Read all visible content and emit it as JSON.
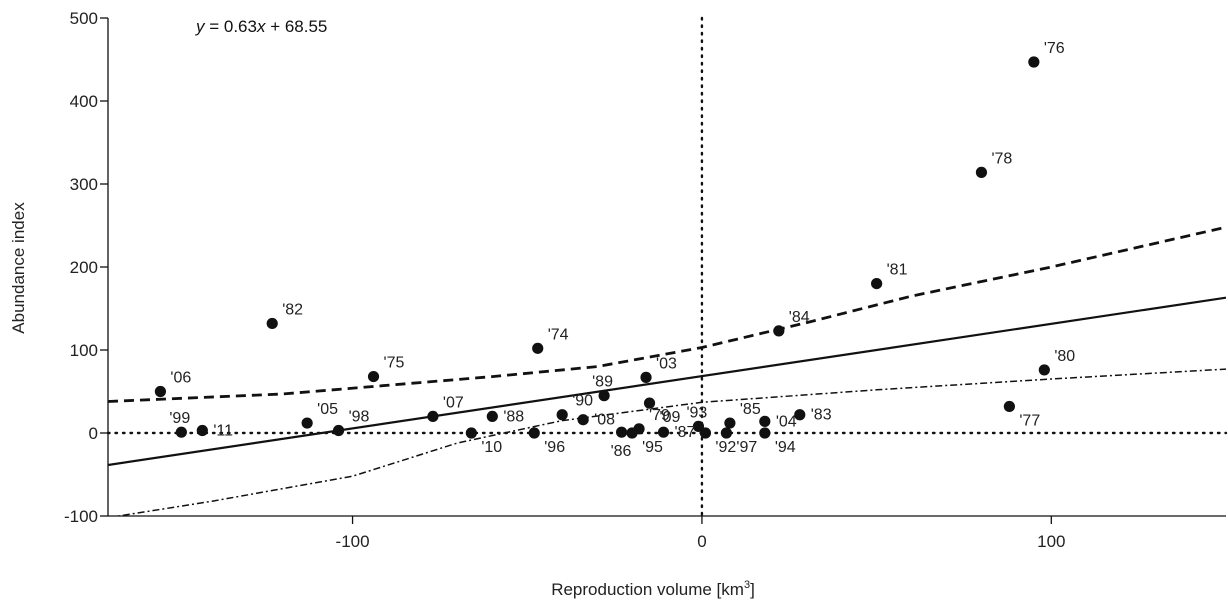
{
  "chart_data": {
    "type": "scatter",
    "title": "",
    "equation": {
      "y": "y",
      "mid": " = 0.63",
      "x": "x",
      "rest": " + 68.55"
    },
    "xlabel": {
      "main": "Reproduction volume [km",
      "sup": "3",
      "end": "]"
    },
    "ylabel": "Abundance index",
    "xlim": [
      -170,
      150
    ],
    "ylim": [
      -100,
      500
    ],
    "xticks": [
      {
        "value": -100,
        "label": "-100"
      },
      {
        "value": 0,
        "label": "0"
      },
      {
        "value": 100,
        "label": "100"
      }
    ],
    "yticks": [
      {
        "value": -100,
        "label": "-100"
      },
      {
        "value": 0,
        "label": "0"
      },
      {
        "value": 100,
        "label": "100"
      },
      {
        "value": 200,
        "label": "200"
      },
      {
        "value": 300,
        "label": "300"
      },
      {
        "value": 400,
        "label": "400"
      },
      {
        "value": 500,
        "label": "500"
      }
    ],
    "regression": {
      "slope": 0.63,
      "intercept": 68.55
    },
    "confidence_upper": [
      [
        -170,
        38
      ],
      [
        -120,
        47
      ],
      [
        -60,
        68
      ],
      [
        -30,
        80
      ],
      [
        0,
        103
      ],
      [
        30,
        133
      ],
      [
        60,
        165
      ],
      [
        100,
        200
      ],
      [
        150,
        248
      ]
    ],
    "confidence_lower": [
      [
        -170,
        -102
      ],
      [
        -140,
        -82
      ],
      [
        -100,
        -52
      ],
      [
        -70,
        -12
      ],
      [
        -40,
        15
      ],
      [
        0,
        37
      ],
      [
        50,
        52
      ],
      [
        100,
        65
      ],
      [
        150,
        77
      ]
    ],
    "reference_lines": {
      "x": 0,
      "y": 0
    },
    "points": [
      {
        "label": "'76",
        "x": 95,
        "y": 447,
        "pos": "ur"
      },
      {
        "label": "'78",
        "x": 80,
        "y": 314,
        "pos": "ur"
      },
      {
        "label": "'81",
        "x": 50,
        "y": 180,
        "pos": "ur"
      },
      {
        "label": "'82",
        "x": -123,
        "y": 132,
        "pos": "ur"
      },
      {
        "label": "'84",
        "x": 22,
        "y": 123,
        "pos": "ur"
      },
      {
        "label": "'74",
        "x": -47,
        "y": 102,
        "pos": "ur"
      },
      {
        "label": "'80",
        "x": 98,
        "y": 76,
        "pos": "ur"
      },
      {
        "label": "'75",
        "x": -94,
        "y": 68,
        "pos": "ur"
      },
      {
        "label": "'03",
        "x": -16,
        "y": 67,
        "pos": "ur"
      },
      {
        "label": "'06",
        "x": -155,
        "y": 50,
        "pos": "ur"
      },
      {
        "label": "'89",
        "x": -28,
        "y": 45,
        "pos": "ul"
      },
      {
        "label": "'09",
        "x": -15,
        "y": 36,
        "pos": "dr"
      },
      {
        "label": "'77",
        "x": 88,
        "y": 32,
        "pos": "dr"
      },
      {
        "label": "'83",
        "x": 28,
        "y": 22,
        "pos": "r"
      },
      {
        "label": "'90",
        "x": -40,
        "y": 22,
        "pos": "ur"
      },
      {
        "label": "'88",
        "x": -60,
        "y": 20,
        "pos": "r"
      },
      {
        "label": "'07",
        "x": -77,
        "y": 20,
        "pos": "ur"
      },
      {
        "label": "'08",
        "x": -34,
        "y": 16,
        "pos": "r"
      },
      {
        "label": "'04",
        "x": 18,
        "y": 14,
        "pos": "r"
      },
      {
        "label": "'85",
        "x": 8,
        "y": 12,
        "pos": "ur"
      },
      {
        "label": "'05",
        "x": -113,
        "y": 12,
        "pos": "ur"
      },
      {
        "label": "'93",
        "x": -1,
        "y": 8,
        "pos": "ul"
      },
      {
        "label": "'79",
        "x": -18,
        "y": 5,
        "pos": "ur"
      },
      {
        "label": "'98",
        "x": -104,
        "y": 3,
        "pos": "ur"
      },
      {
        "label": "'11",
        "x": -143,
        "y": 3,
        "pos": "r"
      },
      {
        "label": "'99",
        "x": -149,
        "y": 1,
        "pos": "ul"
      },
      {
        "label": "'86",
        "x": -23,
        "y": 1,
        "pos": "dl"
      },
      {
        "label": "'95",
        "x": -20,
        "y": 0,
        "pos": "dr"
      },
      {
        "label": "'87",
        "x": -11,
        "y": 1,
        "pos": "r"
      },
      {
        "label": "'96",
        "x": -48,
        "y": 0,
        "pos": "dr"
      },
      {
        "label": "'10",
        "x": -66,
        "y": 0,
        "pos": "dr"
      },
      {
        "label": "'92",
        "x": 1,
        "y": 0,
        "pos": "dr"
      },
      {
        "label": "'97",
        "x": 7,
        "y": 0,
        "pos": "dr"
      },
      {
        "label": "'94",
        "x": 18,
        "y": 0,
        "pos": "dr"
      }
    ]
  }
}
